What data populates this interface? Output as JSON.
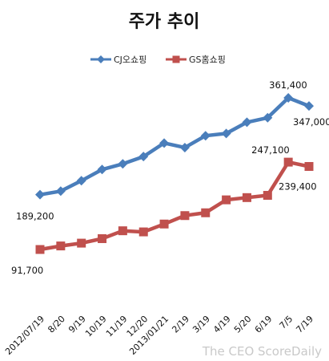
{
  "chart_data": {
    "type": "line",
    "title": "주가 추이",
    "categories": [
      "2012/07/19",
      "8/20",
      "9/19",
      "10/19",
      "11/19",
      "12/20",
      "2013/01/21",
      "2/19",
      "3/19",
      "4/19",
      "5/20",
      "6/19",
      "7/5",
      "7/19"
    ],
    "series": [
      {
        "name": "CJ오쇼핑",
        "color": "#4a7ebb",
        "marker": "diamond",
        "values": [
          189200,
          195500,
          214000,
          234000,
          244000,
          257000,
          281000,
          273000,
          294000,
          298000,
          318000,
          326000,
          361400,
          347000
        ]
      },
      {
        "name": "GS홈쇼핑",
        "color": "#c0504d",
        "marker": "square",
        "values": [
          91700,
          98000,
          103000,
          111000,
          125000,
          123000,
          137000,
          152000,
          157000,
          180000,
          184000,
          188000,
          247100,
          239400
        ]
      }
    ],
    "data_labels": [
      {
        "series": 0,
        "index": 0,
        "text": "189,200"
      },
      {
        "series": 0,
        "index": 12,
        "text": "361,400"
      },
      {
        "series": 0,
        "index": 13,
        "text": "347,000"
      },
      {
        "series": 1,
        "index": 0,
        "text": "91,700"
      },
      {
        "series": 1,
        "index": 12,
        "text": "247,100"
      },
      {
        "series": 1,
        "index": 13,
        "text": "239,400"
      }
    ],
    "legend_position": "top",
    "grid": false
  },
  "watermark": "The CEO ScoreDaily"
}
